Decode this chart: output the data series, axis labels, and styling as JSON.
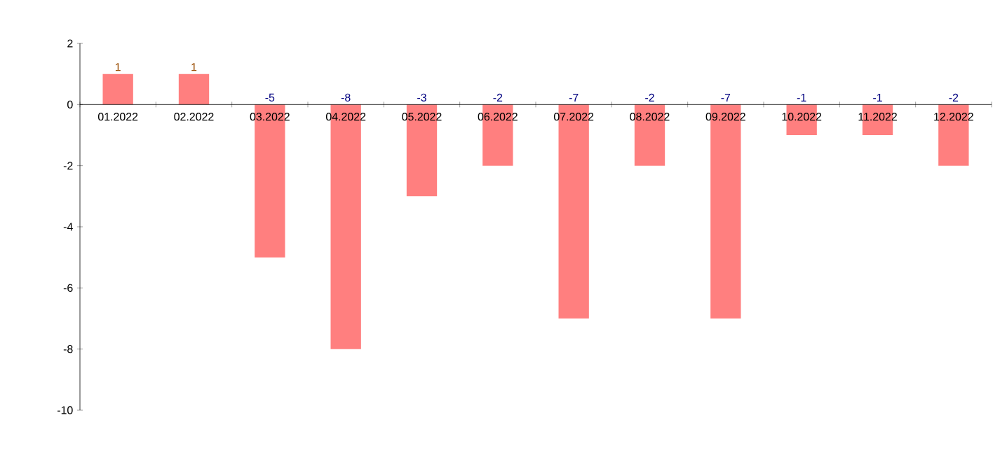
{
  "chart_data": {
    "type": "bar",
    "categories": [
      "01.2022",
      "02.2022",
      "03.2022",
      "04.2022",
      "05.2022",
      "06.2022",
      "07.2022",
      "08.2022",
      "09.2022",
      "10.2022",
      "11.2022",
      "12.2022"
    ],
    "values": [
      1,
      1,
      -5,
      -8,
      -3,
      -2,
      -7,
      -2,
      -7,
      -1,
      -1,
      -2
    ],
    "value_labels": [
      "1",
      "1",
      "-5",
      "-8",
      "-3",
      "-2",
      "-7",
      "-2",
      "-7",
      "-1",
      "-1",
      "-2"
    ],
    "color": "#ff7f7f",
    "ylim": [
      -10,
      2
    ],
    "yticks": [
      -10,
      -8,
      -6,
      -4,
      -2,
      0,
      2
    ]
  }
}
